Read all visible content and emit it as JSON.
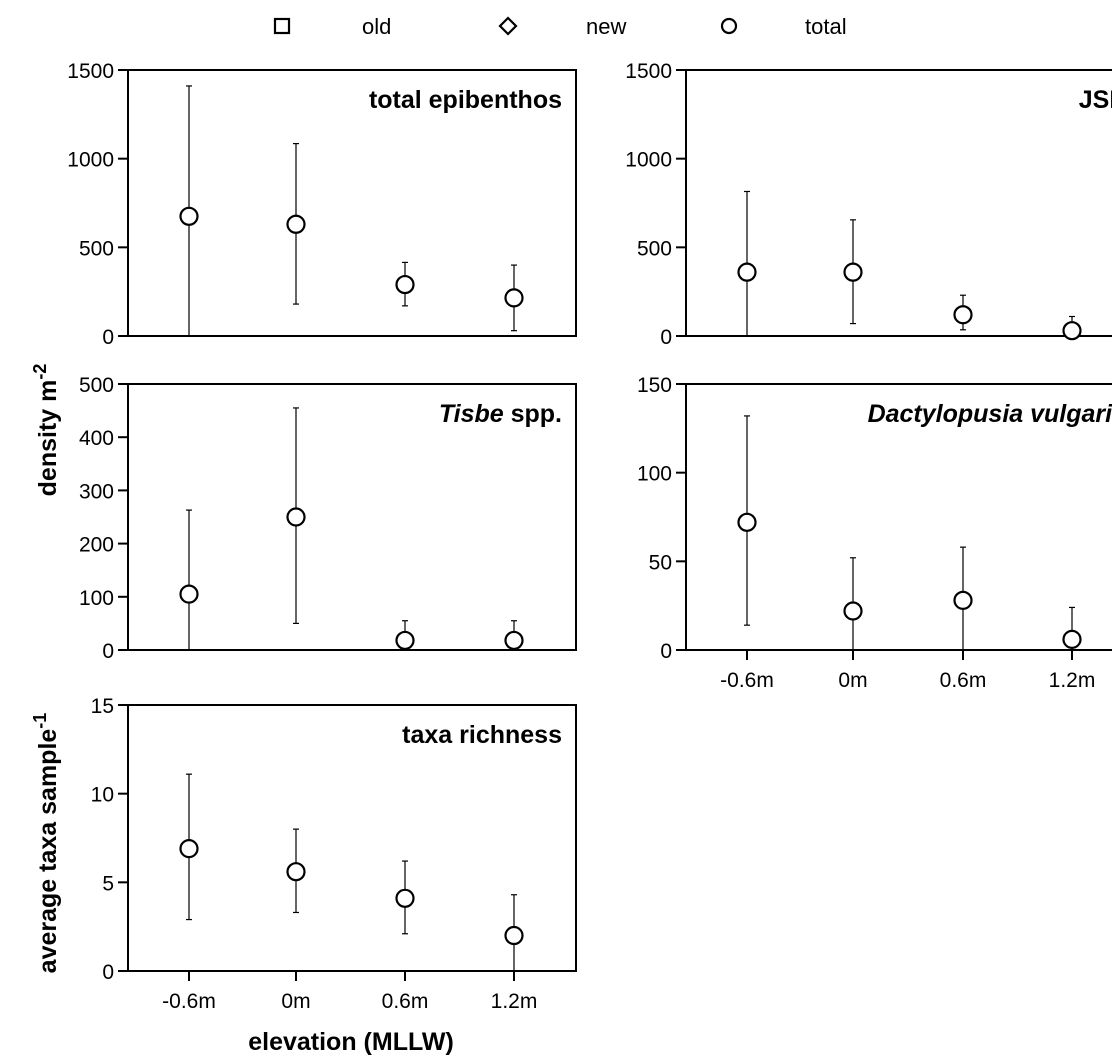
{
  "legend": [
    {
      "marker": "square",
      "label": "old"
    },
    {
      "marker": "diamond",
      "label": "new"
    },
    {
      "marker": "circle",
      "label": "total"
    }
  ],
  "ylabel_top": {
    "base": "density m",
    "sup": "-2"
  },
  "ylabel_bottom": {
    "base": "average taxa sample",
    "sup": "-1"
  },
  "xlabel": "elevation (MLLW)",
  "chart_data": [
    {
      "id": "total-epibenthos",
      "type": "scatter",
      "title": {
        "prefix": "",
        "italic": "",
        "suffix": "total epibenthos"
      },
      "categories": [
        "-0.6m",
        "0m",
        "0.6m",
        "1.2m"
      ],
      "ylim": [
        0,
        1500
      ],
      "yticks": [
        0,
        500,
        1000,
        1500
      ],
      "show_xticks": false,
      "series": [
        {
          "marker": "circle",
          "values": [
            675,
            630,
            290,
            215
          ],
          "err_low": [
            0,
            180,
            170,
            30
          ],
          "err_high": [
            1410,
            1085,
            415,
            400
          ]
        }
      ]
    },
    {
      "id": "jsp",
      "type": "scatter",
      "title": {
        "prefix": "",
        "italic": "",
        "suffix": "JSP"
      },
      "categories": [
        "-0.6m",
        "0m",
        "0.6m",
        "1.2m"
      ],
      "ylim": [
        0,
        1500
      ],
      "yticks": [
        0,
        500,
        1000,
        1500
      ],
      "show_xticks": false,
      "series": [
        {
          "marker": "circle",
          "values": [
            360,
            360,
            120,
            30
          ],
          "err_low": [
            0,
            70,
            35,
            0
          ],
          "err_high": [
            815,
            655,
            230,
            110
          ]
        }
      ]
    },
    {
      "id": "tisbe",
      "type": "scatter",
      "title": {
        "prefix": "",
        "italic": "Tisbe",
        "suffix": " spp."
      },
      "categories": [
        "-0.6m",
        "0m",
        "0.6m",
        "1.2m"
      ],
      "ylim": [
        0,
        500
      ],
      "yticks": [
        0,
        100,
        200,
        300,
        400,
        500
      ],
      "show_xticks": false,
      "series": [
        {
          "marker": "circle",
          "values": [
            105,
            250,
            18,
            18
          ],
          "err_low": [
            0,
            50,
            0,
            0
          ],
          "err_high": [
            263,
            455,
            55,
            55
          ]
        }
      ]
    },
    {
      "id": "dactylopusia",
      "type": "scatter",
      "title": {
        "prefix": "",
        "italic": "Dactylopusia vulgaris",
        "suffix": ""
      },
      "categories": [
        "-0.6m",
        "0m",
        "0.6m",
        "1.2m"
      ],
      "ylim": [
        0,
        150
      ],
      "yticks": [
        0,
        50,
        100,
        150
      ],
      "show_xticks": true,
      "series": [
        {
          "marker": "circle",
          "values": [
            72,
            22,
            28,
            6
          ],
          "err_low": [
            14,
            0,
            0,
            0
          ],
          "err_high": [
            132,
            52,
            58,
            24
          ]
        }
      ]
    },
    {
      "id": "taxa-richness",
      "type": "scatter",
      "title": {
        "prefix": "",
        "italic": "",
        "suffix": "taxa richness"
      },
      "categories": [
        "-0.6m",
        "0m",
        "0.6m",
        "1.2m"
      ],
      "ylim": [
        0,
        15
      ],
      "yticks": [
        0,
        5,
        10,
        15
      ],
      "show_xticks": true,
      "series": [
        {
          "marker": "circle",
          "values": [
            6.9,
            5.6,
            4.1,
            2.0
          ],
          "err_low": [
            2.9,
            3.3,
            2.1,
            0
          ],
          "err_high": [
            11.1,
            8.0,
            6.2,
            4.3
          ]
        }
      ]
    }
  ]
}
